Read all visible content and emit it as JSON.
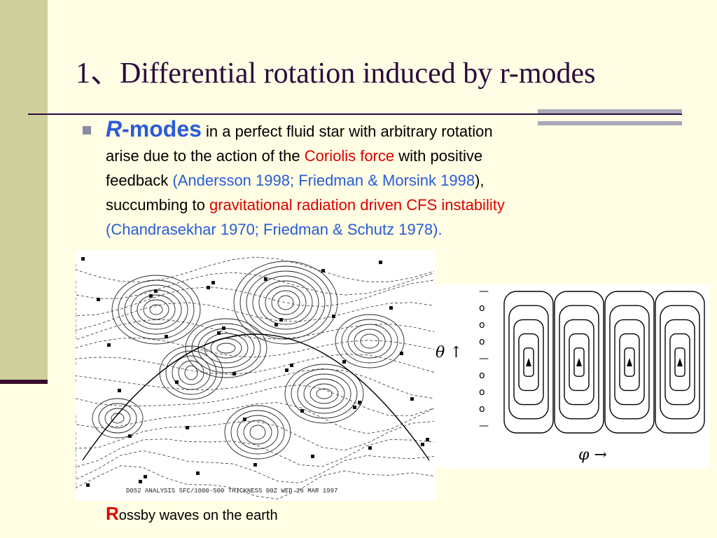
{
  "slide": {
    "title": "1、Differential rotation induced by r-modes",
    "bullet": {
      "keyword_r": "R",
      "keyword_rest": "-modes",
      "line1_rest": " in a perfect fluid star with arbitrary rotation",
      "line2_prefix": "arise due to the action of the ",
      "coriolis": "Coriolis force",
      "line2_suffix": " with positive",
      "line3_prefix": "feedback ",
      "ref1": "(Andersson 1998; Friedman & Morsink 1998",
      "line3_suffix": "),",
      "line4_prefix": "succumbing to ",
      "cfs": "gravitational radiation driven CFS instability",
      "ref2": "(Chandrasekhar 1970; Friedman & Schutz 1978)."
    },
    "weather_map": {
      "caption": "D052   ANALYSIS SFC/1000-500 THICKNESS 00Z WED 26 MAR 1997"
    },
    "rmode_figure": {
      "theta_label": "θ ↑",
      "phi_label": "φ →"
    },
    "caption": {
      "first_letter": "R",
      "rest": "ossby waves on the earth"
    },
    "colors": {
      "background": "#fffde3",
      "band": "#cfcf9e",
      "title": "#2b0a3d",
      "accent_blue": "#2a5bd8",
      "accent_red": "#dd0000"
    }
  }
}
